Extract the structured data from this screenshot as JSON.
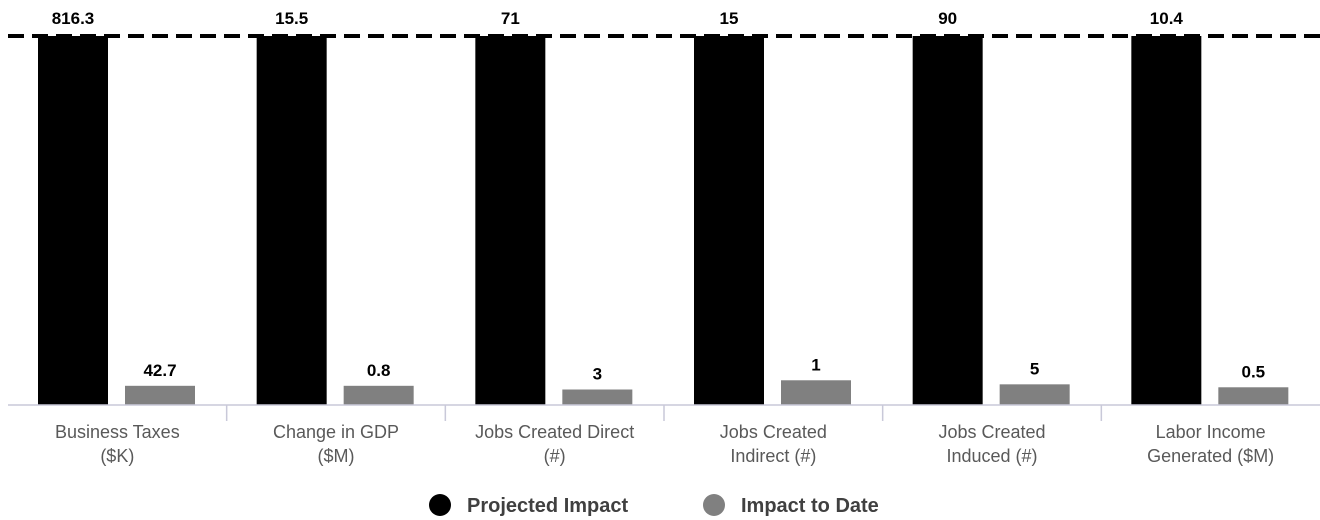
{
  "chart_data": {
    "type": "bar",
    "categories": [
      [
        "Business Taxes",
        "($K)"
      ],
      [
        "Change in GDP",
        "($M)"
      ],
      [
        "Jobs Created Direct",
        "(#)"
      ],
      [
        "Jobs Created",
        "Indirect (#)"
      ],
      [
        "Jobs Created",
        "Induced (#)"
      ],
      [
        "Labor Income",
        "Generated ($M)"
      ]
    ],
    "series": [
      {
        "name": "Projected Impact",
        "color": "#000000",
        "values": [
          816.3,
          15.5,
          71,
          15,
          90,
          10.4
        ],
        "labels": [
          "816.3",
          "15.5",
          "71",
          "15",
          "90",
          "10.4"
        ],
        "percent_of_projected": [
          100,
          100,
          100,
          100,
          100,
          100
        ]
      },
      {
        "name": "Impact to Date",
        "color": "#808080",
        "values": [
          42.7,
          0.8,
          3,
          1,
          5,
          0.5
        ],
        "labels": [
          "42.7",
          "0.8",
          "3",
          "1",
          "5",
          "0.5"
        ],
        "percent_of_projected": [
          5.2,
          5.2,
          4.2,
          6.7,
          5.6,
          4.8
        ]
      }
    ],
    "target_line": {
      "style": "dashed",
      "value_percent": 100
    },
    "legend": {
      "position": "bottom"
    },
    "grid": false
  }
}
